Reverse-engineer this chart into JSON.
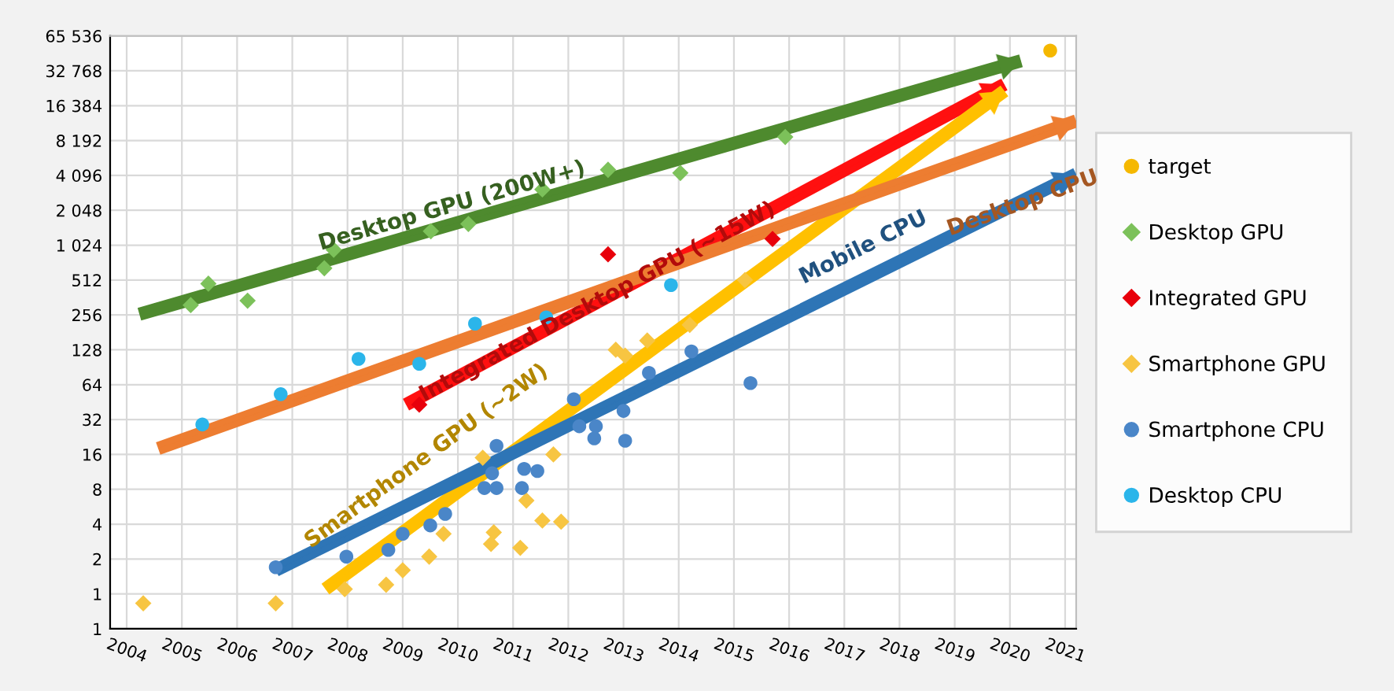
{
  "chart_data": {
    "type": "scatter",
    "log": "y",
    "grid": true,
    "legend": "right",
    "xlim": [
      2003.7,
      2021.2
    ],
    "xticks": [
      2004,
      2005,
      2006,
      2007,
      2008,
      2009,
      2010,
      2011,
      2012,
      2013,
      2014,
      2015,
      2016,
      2017,
      2018,
      2019,
      2020,
      2021
    ],
    "ylim": [
      0.5,
      65536
    ],
    "yticks": [
      {
        "value": 0.5,
        "label": "1"
      },
      1,
      2,
      4,
      8,
      16,
      32,
      64,
      128,
      256,
      512,
      {
        "value": 1024,
        "label": "1 024"
      },
      {
        "value": 2048,
        "label": "2 048"
      },
      {
        "value": 4096,
        "label": "4 096"
      },
      {
        "value": 8192,
        "label": "8 192"
      },
      {
        "value": 16384,
        "label": "16 384"
      },
      {
        "value": 32768,
        "label": "32 768"
      },
      {
        "value": 65536,
        "label": "65 536"
      }
    ],
    "series": [
      {
        "type": "line",
        "marker": "none",
        "color": "#4e8a2e",
        "x": [
          2004.23,
          2020.2
        ],
        "values": [
          260,
          40000
        ]
      },
      {
        "type": "line",
        "marker": "none",
        "color": "#ff1010",
        "x": [
          2009.06,
          2019.9
        ],
        "values": [
          43,
          25000
        ]
      },
      {
        "type": "line",
        "marker": "none",
        "color": "#ffc000",
        "x": [
          2007.6,
          2019.9
        ],
        "values": [
          1.1,
          22000
        ]
      },
      {
        "type": "line",
        "marker": "none",
        "color": "#ed7d31",
        "x": [
          2004.57,
          2021.2
        ],
        "values": [
          18,
          12100
        ]
      },
      {
        "type": "line",
        "marker": "none",
        "color": "#2e75b6",
        "x": [
          2006.7,
          2021.2
        ],
        "values": [
          1.6,
          4200
        ]
      },
      {
        "name": "target",
        "marker": "circle",
        "color": "#f5b800",
        "x": [
          2020.73
        ],
        "values": [
          49000
        ]
      },
      {
        "name": "Desktop GPU",
        "marker": "diamond",
        "color": "#7cc15a",
        "x": [
          2005.16,
          2005.48,
          2006.19,
          2007.58,
          2007.75,
          2009.51,
          2010.19,
          2011.53,
          2012.72,
          2014.03,
          2015.93
        ],
        "values": [
          311,
          477,
          340,
          648,
          935,
          1350,
          1560,
          3100,
          4580,
          4300,
          8800
        ]
      },
      {
        "name": "Integrated GPU",
        "marker": "diamond",
        "color": "#e8000b",
        "x": [
          2009.3,
          2012.72,
          2015.7
        ],
        "values": [
          43,
          853,
          1160
        ]
      },
      {
        "name": "Smartphone GPU",
        "marker": "diamond",
        "color": "#f7c542",
        "x": [
          2004.3,
          2006.7,
          2007.95,
          2008.7,
          2009.0,
          2009.48,
          2009.74,
          2010.65,
          2010.6,
          2011.13,
          2011.24,
          2010.45,
          2011.53,
          2011.87,
          2011.73,
          2012.86,
          2013.03,
          2013.43,
          2014.2,
          2015.2
        ],
        "values": [
          0.83,
          0.83,
          1.1,
          1.2,
          1.6,
          2.1,
          3.3,
          3.4,
          2.7,
          2.5,
          6.4,
          15,
          4.3,
          4.2,
          16,
          128,
          114,
          154,
          210,
          512
        ]
      },
      {
        "name": "Smartphone CPU",
        "marker": "circle",
        "color": "#4a86c8",
        "x": [
          2006.7,
          2007.98,
          2008.74,
          2009.0,
          2009.5,
          2009.77,
          2010.48,
          2010.7,
          2010.7,
          2010.62,
          2011.16,
          2011.2,
          2011.44,
          2012.1,
          2012.2,
          2012.47,
          2012.5,
          2013.0,
          2013.03,
          2013.46,
          2014.23,
          2015.3
        ],
        "values": [
          1.7,
          2.1,
          2.4,
          3.3,
          3.9,
          4.9,
          8.2,
          8.2,
          19,
          11,
          8.2,
          12,
          11.5,
          48,
          28,
          22,
          28,
          38,
          21,
          81,
          124,
          66
        ]
      },
      {
        "name": "Desktop CPU",
        "marker": "circle",
        "color": "#2bb5ea",
        "x": [
          2005.37,
          2006.79,
          2008.2,
          2009.3,
          2010.31,
          2011.6,
          2013.86
        ],
        "values": [
          29,
          53,
          107,
          97,
          215,
          244,
          463
        ]
      }
    ],
    "annotations": [
      "Desktop GPU (200W+)",
      "Integrated Desktop GPU (~15W)",
      "Smartphone GPU (~2W)",
      "Desktop CPU",
      "Mobile CPU"
    ]
  }
}
